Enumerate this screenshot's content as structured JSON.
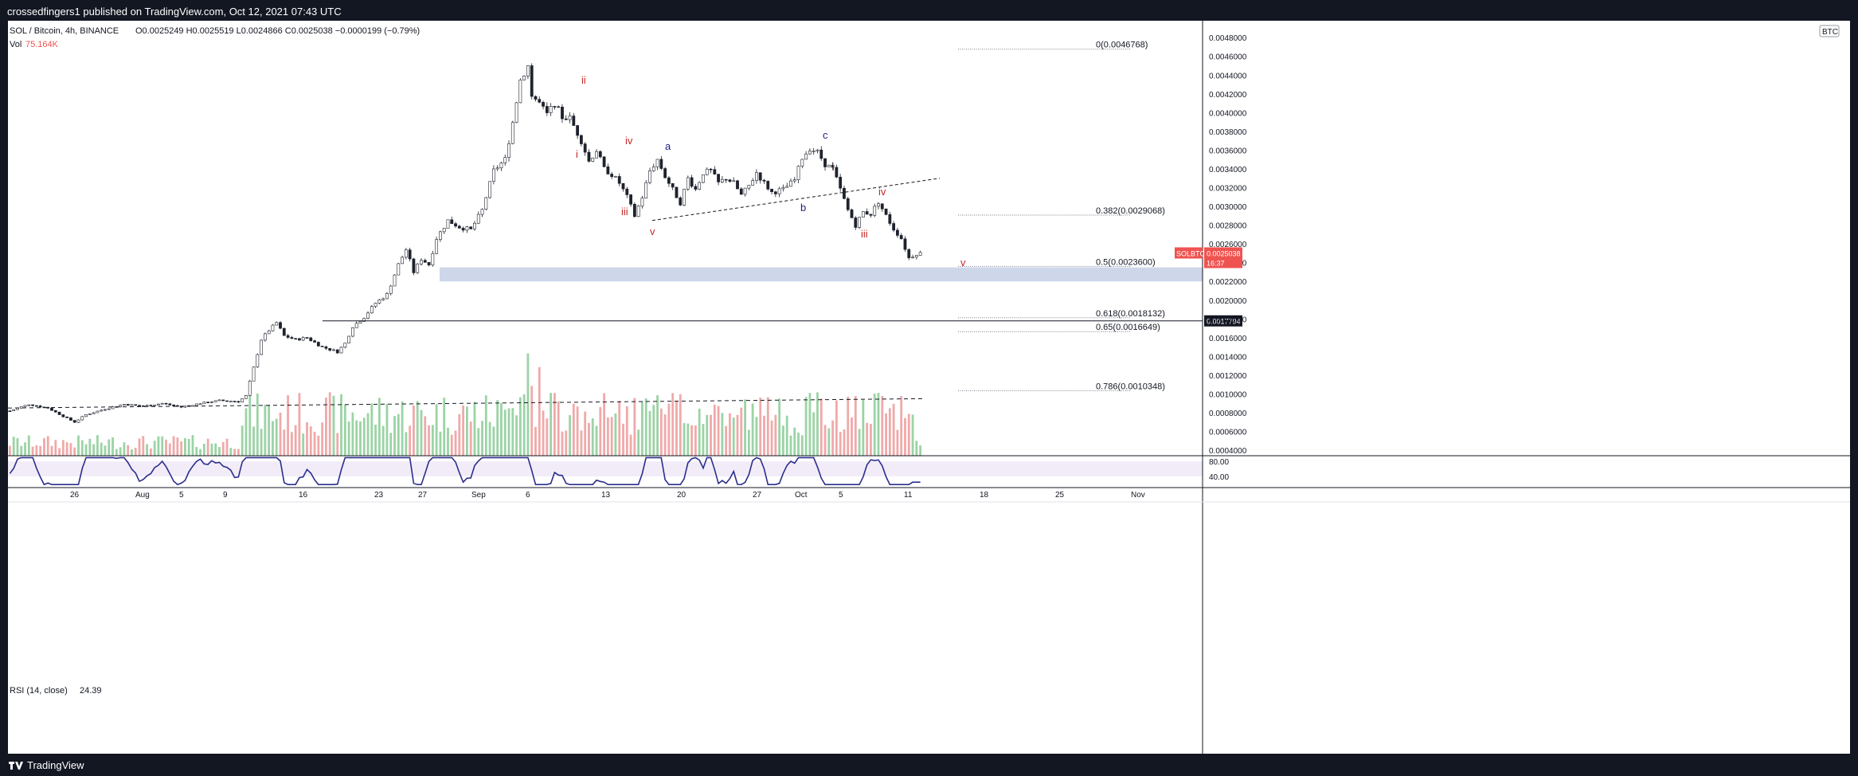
{
  "header": {
    "publisher": "crossedfingers1 published on TradingView.com, Oct 12, 2021 07:43 UTC"
  },
  "footer": {
    "brand": "TradingView"
  },
  "legend": {
    "symbol": "SOL / Bitcoin, 4h, BINANCE",
    "ohlc": "O0.0025249  H0.0025519  L0.0024866  C0.0025038  −0.0000199 (−0.79%)",
    "vol_label": "Vol",
    "vol_value": "75.164K",
    "rsi_label": "RSI (14, close)",
    "rsi_value": "24.39",
    "currency_badge": "BTC"
  },
  "colors": {
    "up": "#26a69a",
    "down": "#ef5350",
    "rsi": "#2a2e8c",
    "zone": "#c5d0e6",
    "price_tag": "#ef5350"
  },
  "chart_data": {
    "type": "candlestick",
    "symbol": "SOLBTC",
    "timeframe": "4h",
    "price_axis": {
      "ticks": [
        "0.0048000",
        "0.0046000",
        "0.0044000",
        "0.0042000",
        "0.0040000",
        "0.0038000",
        "0.0036000",
        "0.0034000",
        "0.0032000",
        "0.0030000",
        "0.0028000",
        "0.0026000",
        "0.0024000",
        "0.0022000",
        "0.0020000",
        "0.0018000",
        "0.0016000",
        "0.0014000",
        "0.0012000",
        "0.0010000",
        "0.0008000",
        "0.0006000",
        "0.0004000"
      ],
      "range": [
        0.00035,
        0.00498
      ]
    },
    "time_axis": [
      "26",
      "Aug",
      "5",
      "9",
      "16",
      "23",
      "27",
      "Sep",
      "6",
      "13",
      "20",
      "27",
      "Oct",
      "5",
      "11",
      "18",
      "25",
      "Nov"
    ],
    "price_path": [
      [
        0,
        0.00082
      ],
      [
        5,
        0.00089
      ],
      [
        10,
        0.00085
      ],
      [
        15,
        0.00074
      ],
      [
        17,
        0.0007
      ],
      [
        20,
        0.00078
      ],
      [
        25,
        0.00084
      ],
      [
        30,
        0.00089
      ],
      [
        35,
        0.00087
      ],
      [
        40,
        0.0009
      ],
      [
        45,
        0.00086
      ],
      [
        50,
        0.0009
      ],
      [
        55,
        0.00093
      ],
      [
        60,
        0.00092
      ],
      [
        62,
        0.00098
      ],
      [
        64,
        0.00128
      ],
      [
        66,
        0.00158
      ],
      [
        68,
        0.00168
      ],
      [
        70,
        0.00176
      ],
      [
        72,
        0.00162
      ],
      [
        75,
        0.00158
      ],
      [
        78,
        0.0016
      ],
      [
        82,
        0.0015
      ],
      [
        86,
        0.00145
      ],
      [
        88,
        0.00154
      ],
      [
        90,
        0.00172
      ],
      [
        93,
        0.00182
      ],
      [
        96,
        0.00197
      ],
      [
        99,
        0.00206
      ],
      [
        102,
        0.00238
      ],
      [
        104,
        0.00254
      ],
      [
        106,
        0.0023
      ],
      [
        108,
        0.00244
      ],
      [
        110,
        0.00238
      ],
      [
        112,
        0.00266
      ],
      [
        115,
        0.00285
      ],
      [
        118,
        0.00278
      ],
      [
        121,
        0.00275
      ],
      [
        124,
        0.00296
      ],
      [
        127,
        0.00338
      ],
      [
        130,
        0.0035
      ],
      [
        132,
        0.0039
      ],
      [
        134,
        0.00435
      ],
      [
        136,
        0.0045
      ],
      [
        137,
        0.00418
      ],
      [
        139,
        0.0041
      ],
      [
        141,
        0.00398
      ],
      [
        143,
        0.0041
      ],
      [
        145,
        0.00395
      ],
      [
        147,
        0.00394
      ],
      [
        150,
        0.0037
      ],
      [
        152,
        0.00348
      ],
      [
        154,
        0.0036
      ],
      [
        156,
        0.0034
      ],
      [
        158,
        0.00334
      ],
      [
        160,
        0.00325
      ],
      [
        162,
        0.0031
      ],
      [
        164,
        0.0029
      ],
      [
        166,
        0.0031
      ],
      [
        168,
        0.00338
      ],
      [
        170,
        0.0035
      ],
      [
        172,
        0.00332
      ],
      [
        174,
        0.00318
      ],
      [
        176,
        0.00304
      ],
      [
        178,
        0.0033
      ],
      [
        180,
        0.00318
      ],
      [
        182,
        0.00336
      ],
      [
        184,
        0.00338
      ],
      [
        186,
        0.00325
      ],
      [
        188,
        0.0033
      ],
      [
        190,
        0.00325
      ],
      [
        192,
        0.00312
      ],
      [
        194,
        0.00322
      ],
      [
        196,
        0.00336
      ],
      [
        198,
        0.00325
      ],
      [
        200,
        0.00315
      ],
      [
        203,
        0.00318
      ],
      [
        206,
        0.00328
      ],
      [
        208,
        0.00352
      ],
      [
        210,
        0.00362
      ],
      [
        212,
        0.00358
      ],
      [
        214,
        0.00345
      ],
      [
        216,
        0.0034
      ],
      [
        218,
        0.00318
      ],
      [
        220,
        0.00296
      ],
      [
        222,
        0.0028
      ],
      [
        224,
        0.00294
      ],
      [
        226,
        0.00292
      ],
      [
        228,
        0.00305
      ],
      [
        230,
        0.0029
      ],
      [
        232,
        0.00276
      ],
      [
        234,
        0.00266
      ],
      [
        236,
        0.00245
      ],
      [
        238,
        0.0025
      ]
    ],
    "annotations": [
      {
        "text": "ii",
        "color": "#c62828"
      },
      {
        "text": "i",
        "color": "#c62828"
      },
      {
        "text": "iv",
        "color": "#c62828"
      },
      {
        "text": "iii",
        "color": "#c62828"
      },
      {
        "text": "v",
        "color": "#c62828"
      },
      {
        "text": "a",
        "color": "#1a237e"
      },
      {
        "text": "b",
        "color": "#1a237e"
      },
      {
        "text": "c",
        "color": "#1a237e"
      },
      {
        "text": "i",
        "color": "#c62828"
      },
      {
        "text": "iv",
        "color": "#c62828"
      },
      {
        "text": "iii",
        "color": "#c62828"
      },
      {
        "text": "v",
        "color": "#c62828"
      }
    ],
    "fib_levels": [
      {
        "label": "0(0.0046768)",
        "value": 0.0046768
      },
      {
        "label": "0.382(0.0029068)",
        "value": 0.0029068
      },
      {
        "label": "0.5(0.0023600)",
        "value": 0.00236
      },
      {
        "label": "0.618(0.0018132)",
        "value": 0.0018132
      },
      {
        "label": "0.65(0.0016649)",
        "value": 0.0016649
      },
      {
        "label": "0.786(0.0010348)",
        "value": 0.0010348
      }
    ],
    "horizontal_line": {
      "value": 0.0017794,
      "label": "0.0017794"
    },
    "support_zone": [
      0.0022,
      0.00235
    ],
    "last_price_tag": {
      "symbol": "SOLBTC",
      "price": "0.0025038",
      "countdown": "16:37"
    },
    "rsi": {
      "axis_ticks": [
        "80.00",
        "40.00"
      ],
      "last": 24.39
    }
  }
}
